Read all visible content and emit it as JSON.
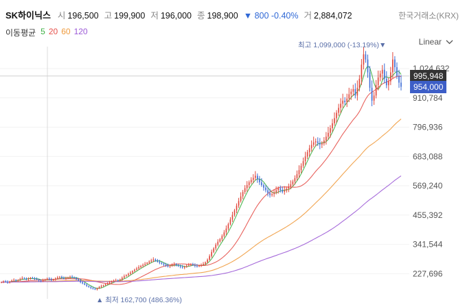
{
  "stock": {
    "name": "SK하이닉스",
    "open_label": "시",
    "open": "196,500",
    "high_label": "고",
    "high": "199,900",
    "low_label": "저",
    "low": "196,000",
    "close_label": "종",
    "close": "198,900",
    "change": "▼ 800 -0.40%",
    "volume_label": "거",
    "volume": "2,884,072",
    "exchange": "한국거래소(KRX)"
  },
  "ma": {
    "title": "이동평균",
    "periods": [
      {
        "label": "5",
        "color": "#3cb043"
      },
      {
        "label": "20",
        "color": "#e6504a"
      },
      {
        "label": "60",
        "color": "#ef9a3c"
      },
      {
        "label": "120",
        "color": "#9b59d6"
      }
    ]
  },
  "scale_selector": {
    "label": "Linear"
  },
  "chart_data": {
    "type": "candlestick",
    "y_ticks": [
      "1,024,632",
      "910,784",
      "796,936",
      "683,088",
      "569,240",
      "455,392",
      "341,544",
      "227,696"
    ],
    "ylim": [
      130000,
      1110000
    ],
    "price_tags": [
      {
        "label": "995,948",
        "value": 995948,
        "color": "#333333"
      },
      {
        "label": "954,000",
        "value": 954000,
        "color": "#3d5ec7"
      }
    ],
    "max_annotation": {
      "text": "최고 1,099,000 (-13.19%)▼",
      "value": 1099000
    },
    "min_annotation": {
      "text": "▲ 최저 162,700 (486.36%)",
      "value": 162700
    },
    "up_color": "#e0473c",
    "down_color": "#3d6cd6",
    "closes": [
      195000,
      198000,
      196000,
      193000,
      197000,
      201000,
      204000,
      200000,
      203000,
      207000,
      211000,
      209000,
      205000,
      208000,
      212000,
      210000,
      207000,
      205000,
      201000,
      198000,
      203000,
      206000,
      209000,
      206000,
      202000,
      205000,
      209000,
      213000,
      216000,
      212000,
      208000,
      210000,
      213000,
      216000,
      214000,
      211000,
      206000,
      201000,
      195000,
      190000,
      185000,
      180000,
      176000,
      172000,
      169000,
      166000,
      171000,
      176000,
      180000,
      183000,
      187000,
      190000,
      194000,
      198000,
      201000,
      203000,
      201000,
      205000,
      212000,
      218000,
      222000,
      227000,
      232000,
      238000,
      243000,
      248000,
      253000,
      258000,
      262000,
      266000,
      270000,
      275000,
      279000,
      283000,
      279000,
      274000,
      270000,
      267000,
      263000,
      259000,
      255000,
      258000,
      262000,
      265000,
      261000,
      257000,
      254000,
      251000,
      255000,
      259000,
      262000,
      265000,
      262000,
      258000,
      256000,
      259000,
      262000,
      266000,
      272000,
      282000,
      296000,
      312000,
      326000,
      340000,
      352000,
      362000,
      374000,
      388000,
      403000,
      420000,
      438000,
      456000,
      474000,
      492000,
      510000,
      528000,
      545000,
      560000,
      572000,
      583000,
      592000,
      600000,
      608000,
      595000,
      583000,
      572000,
      562000,
      552000,
      541000,
      533000,
      537000,
      544000,
      552000,
      560000,
      553000,
      546000,
      551000,
      558000,
      566000,
      575000,
      586000,
      599000,
      614000,
      630000,
      647000,
      665000,
      683000,
      700000,
      715000,
      728000,
      738000,
      742000,
      735000,
      729000,
      734000,
      745000,
      760000,
      775000,
      793000,
      812000,
      832000,
      853000,
      872000,
      888000,
      900000,
      894000,
      908000,
      925000,
      935000,
      945000,
      920000,
      950000,
      985000,
      1040000,
      1080000,
      1060000,
      1010000,
      950000,
      900000,
      920000,
      960000,
      990000,
      1005000,
      1020000,
      985000,
      960000,
      975000,
      1010000,
      1060000,
      1030000,
      995948,
      970000,
      954000
    ]
  }
}
